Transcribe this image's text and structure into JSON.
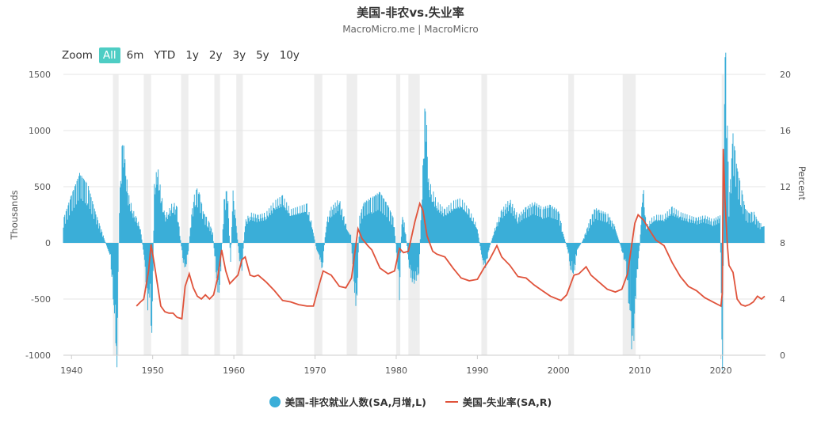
{
  "title": "美国-非农vs.失业率",
  "subtitle": "MacroMicro.me | MacroMicro",
  "zoom": {
    "label": "Zoom",
    "options": [
      "All",
      "6m",
      "YTD",
      "1y",
      "2y",
      "3y",
      "5y",
      "10y"
    ],
    "selected": "All"
  },
  "colors": {
    "payrolls": "#3aaed8",
    "unemployment": "#e0533b",
    "recession": "#eeeeee"
  },
  "chart_data": {
    "type": "bar+line",
    "x_axis": {
      "min": 1939,
      "max": 2025.5,
      "ticks": [
        1940,
        1950,
        1960,
        1970,
        1980,
        1990,
        2000,
        2010,
        2020
      ]
    },
    "y_left": {
      "label": "Thousands",
      "min": -1000,
      "max": 1500,
      "ticks": [
        -1000,
        -500,
        0,
        500,
        1000,
        1500
      ],
      "tick_labels": [
        "-1000",
        "-500",
        "0",
        "500",
        "1000",
        "1500"
      ]
    },
    "y_right": {
      "label": "Percent",
      "min": 0,
      "max": 20,
      "ticks": [
        0,
        4,
        8,
        12,
        16,
        20
      ],
      "tick_labels": [
        "0",
        "4",
        "8",
        "12",
        "16",
        "20"
      ]
    },
    "grid": true,
    "legend_position": "bottom",
    "recessions": [
      [
        1945.1,
        1945.8
      ],
      [
        1948.9,
        1949.8
      ],
      [
        1953.5,
        1954.4
      ],
      [
        1957.6,
        1958.3
      ],
      [
        1960.3,
        1961.1
      ],
      [
        1969.9,
        1970.9
      ],
      [
        1973.9,
        1975.2
      ],
      [
        1980.0,
        1980.5
      ],
      [
        1981.5,
        1982.9
      ],
      [
        1990.5,
        1991.2
      ],
      [
        2001.2,
        2001.9
      ],
      [
        2007.9,
        2009.5
      ],
      [
        2020.1,
        2020.4
      ]
    ],
    "series": [
      {
        "name": "美国-非农就业人数(SA,月增,L)",
        "type": "bar",
        "axis": "left",
        "points": [
          [
            1939.0,
            180
          ],
          [
            1940.0,
            360
          ],
          [
            1941.0,
            520
          ],
          [
            1942.0,
            440
          ],
          [
            1943.0,
            220
          ],
          [
            1944.0,
            40
          ],
          [
            1944.8,
            -120
          ],
          [
            1945.3,
            -560
          ],
          [
            1945.6,
            -900
          ],
          [
            1945.9,
            300
          ],
          [
            1946.3,
            800
          ],
          [
            1946.6,
            600
          ],
          [
            1947.0,
            360
          ],
          [
            1947.5,
            250
          ],
          [
            1948.0,
            180
          ],
          [
            1948.5,
            120
          ],
          [
            1949.0,
            -150
          ],
          [
            1949.4,
            -480
          ],
          [
            1949.7,
            -360
          ],
          [
            1949.9,
            -820
          ],
          [
            1950.2,
            420
          ],
          [
            1950.6,
            560
          ],
          [
            1951.0,
            380
          ],
          [
            1951.5,
            200
          ],
          [
            1952.0,
            240
          ],
          [
            1952.5,
            300
          ],
          [
            1953.0,
            260
          ],
          [
            1953.7,
            -120
          ],
          [
            1954.0,
            -220
          ],
          [
            1954.4,
            -60
          ],
          [
            1954.8,
            220
          ],
          [
            1955.3,
            420
          ],
          [
            1955.8,
            360
          ],
          [
            1956.3,
            220
          ],
          [
            1956.8,
            180
          ],
          [
            1957.4,
            80
          ],
          [
            1957.8,
            -220
          ],
          [
            1958.1,
            -420
          ],
          [
            1958.4,
            -220
          ],
          [
            1958.8,
            320
          ],
          [
            1959.2,
            420
          ],
          [
            1959.6,
            -150
          ],
          [
            1959.9,
            380
          ],
          [
            1960.3,
            150
          ],
          [
            1960.7,
            -150
          ],
          [
            1961.0,
            -200
          ],
          [
            1961.4,
            160
          ],
          [
            1962.0,
            220
          ],
          [
            1963.0,
            200
          ],
          [
            1964.0,
            220
          ],
          [
            1965.0,
            300
          ],
          [
            1966.0,
            340
          ],
          [
            1967.0,
            240
          ],
          [
            1968.0,
            260
          ],
          [
            1969.0,
            280
          ],
          [
            1969.7,
            120
          ],
          [
            1970.2,
            -60
          ],
          [
            1970.6,
            -120
          ],
          [
            1970.9,
            -200
          ],
          [
            1971.4,
            160
          ],
          [
            1972.0,
            260
          ],
          [
            1973.0,
            320
          ],
          [
            1973.9,
            120
          ],
          [
            1974.4,
            60
          ],
          [
            1974.8,
            -300
          ],
          [
            1975.1,
            -560
          ],
          [
            1975.5,
            200
          ],
          [
            1976.0,
            300
          ],
          [
            1977.0,
            340
          ],
          [
            1978.0,
            380
          ],
          [
            1979.0,
            280
          ],
          [
            1979.7,
            180
          ],
          [
            1980.2,
            -200
          ],
          [
            1980.4,
            -420
          ],
          [
            1980.7,
            200
          ],
          [
            1981.0,
            160
          ],
          [
            1981.6,
            -180
          ],
          [
            1981.9,
            -280
          ],
          [
            1982.3,
            -300
          ],
          [
            1982.8,
            -220
          ],
          [
            1983.2,
            420
          ],
          [
            1983.6,
            1100
          ],
          [
            1984.0,
            460
          ],
          [
            1984.5,
            380
          ],
          [
            1985.0,
            300
          ],
          [
            1986.0,
            240
          ],
          [
            1987.0,
            300
          ],
          [
            1988.0,
            320
          ],
          [
            1989.0,
            240
          ],
          [
            1990.0,
            120
          ],
          [
            1990.6,
            -140
          ],
          [
            1991.0,
            -180
          ],
          [
            1991.5,
            -40
          ],
          [
            1992.0,
            80
          ],
          [
            1993.0,
            240
          ],
          [
            1994.0,
            320
          ],
          [
            1995.0,
            200
          ],
          [
            1996.0,
            260
          ],
          [
            1997.0,
            300
          ],
          [
            1998.0,
            260
          ],
          [
            1999.0,
            280
          ],
          [
            2000.0,
            240
          ],
          [
            2000.5,
            100
          ],
          [
            2001.2,
            -80
          ],
          [
            2001.5,
            -200
          ],
          [
            2001.9,
            -240
          ],
          [
            2002.3,
            -60
          ],
          [
            2003.0,
            20
          ],
          [
            2003.8,
            160
          ],
          [
            2004.5,
            260
          ],
          [
            2005.0,
            240
          ],
          [
            2006.0,
            220
          ],
          [
            2007.0,
            120
          ],
          [
            2007.8,
            -60
          ],
          [
            2008.3,
            -180
          ],
          [
            2008.8,
            -560
          ],
          [
            2009.0,
            -760
          ],
          [
            2009.2,
            -800
          ],
          [
            2009.6,
            -300
          ],
          [
            2010.0,
            -20
          ],
          [
            2010.4,
            440
          ],
          [
            2010.8,
            120
          ],
          [
            2011.5,
            180
          ],
          [
            2012.0,
            200
          ],
          [
            2013.0,
            200
          ],
          [
            2014.0,
            260
          ],
          [
            2015.0,
            220
          ],
          [
            2016.0,
            200
          ],
          [
            2017.0,
            180
          ],
          [
            2018.0,
            200
          ],
          [
            2019.0,
            170
          ],
          [
            2019.9,
            200
          ],
          [
            2020.2,
            -1000
          ],
          [
            2020.45,
            1500
          ],
          [
            2020.6,
            1400
          ],
          [
            2020.8,
            900
          ],
          [
            2021.0,
            300
          ],
          [
            2021.5,
            820
          ],
          [
            2022.0,
            560
          ],
          [
            2022.5,
            420
          ],
          [
            2023.0,
            260
          ],
          [
            2023.5,
            220
          ],
          [
            2024.0,
            240
          ],
          [
            2024.5,
            170
          ],
          [
            2025.0,
            140
          ],
          [
            2025.4,
            150
          ]
        ]
      },
      {
        "name": "美国-失业率(SA,R)",
        "type": "line",
        "axis": "right",
        "points": [
          [
            1948.0,
            3.5
          ],
          [
            1948.5,
            3.8
          ],
          [
            1948.9,
            4.0
          ],
          [
            1949.5,
            6.0
          ],
          [
            1949.8,
            7.9
          ],
          [
            1950.2,
            6.5
          ],
          [
            1950.6,
            5.0
          ],
          [
            1951.0,
            3.5
          ],
          [
            1951.5,
            3.1
          ],
          [
            1952.0,
            3.0
          ],
          [
            1952.5,
            3.0
          ],
          [
            1953.0,
            2.7
          ],
          [
            1953.6,
            2.6
          ],
          [
            1954.0,
            4.9
          ],
          [
            1954.5,
            5.8
          ],
          [
            1955.0,
            4.8
          ],
          [
            1955.5,
            4.2
          ],
          [
            1956.0,
            4.0
          ],
          [
            1956.5,
            4.3
          ],
          [
            1957.0,
            4.0
          ],
          [
            1957.5,
            4.3
          ],
          [
            1958.0,
            5.5
          ],
          [
            1958.5,
            7.5
          ],
          [
            1959.0,
            6.0
          ],
          [
            1959.5,
            5.1
          ],
          [
            1960.0,
            5.4
          ],
          [
            1960.5,
            5.7
          ],
          [
            1961.0,
            6.8
          ],
          [
            1961.4,
            7.0
          ],
          [
            1962.0,
            5.7
          ],
          [
            1962.5,
            5.6
          ],
          [
            1963.0,
            5.7
          ],
          [
            1964.0,
            5.2
          ],
          [
            1965.0,
            4.6
          ],
          [
            1966.0,
            3.9
          ],
          [
            1967.0,
            3.8
          ],
          [
            1968.0,
            3.6
          ],
          [
            1969.0,
            3.5
          ],
          [
            1969.8,
            3.5
          ],
          [
            1970.5,
            5.0
          ],
          [
            1971.0,
            6.0
          ],
          [
            1972.0,
            5.7
          ],
          [
            1973.0,
            4.9
          ],
          [
            1973.8,
            4.8
          ],
          [
            1974.5,
            5.5
          ],
          [
            1975.3,
            9.0
          ],
          [
            1975.8,
            8.3
          ],
          [
            1976.5,
            7.8
          ],
          [
            1977.0,
            7.5
          ],
          [
            1978.0,
            6.2
          ],
          [
            1979.0,
            5.8
          ],
          [
            1979.8,
            6.0
          ],
          [
            1980.4,
            7.6
          ],
          [
            1980.9,
            7.3
          ],
          [
            1981.5,
            7.4
          ],
          [
            1982.3,
            9.5
          ],
          [
            1982.9,
            10.8
          ],
          [
            1983.3,
            10.3
          ],
          [
            1983.8,
            8.5
          ],
          [
            1984.5,
            7.4
          ],
          [
            1985.0,
            7.2
          ],
          [
            1986.0,
            7.0
          ],
          [
            1987.0,
            6.2
          ],
          [
            1988.0,
            5.5
          ],
          [
            1989.0,
            5.3
          ],
          [
            1990.0,
            5.4
          ],
          [
            1990.8,
            6.2
          ],
          [
            1991.5,
            6.8
          ],
          [
            1992.4,
            7.8
          ],
          [
            1993.0,
            7.0
          ],
          [
            1994.0,
            6.4
          ],
          [
            1995.0,
            5.6
          ],
          [
            1996.0,
            5.5
          ],
          [
            1997.0,
            5.0
          ],
          [
            1998.0,
            4.6
          ],
          [
            1999.0,
            4.2
          ],
          [
            2000.3,
            3.9
          ],
          [
            2001.0,
            4.3
          ],
          [
            2001.9,
            5.7
          ],
          [
            2002.5,
            5.8
          ],
          [
            2003.4,
            6.3
          ],
          [
            2004.0,
            5.7
          ],
          [
            2005.0,
            5.2
          ],
          [
            2006.0,
            4.7
          ],
          [
            2007.0,
            4.5
          ],
          [
            2007.8,
            4.7
          ],
          [
            2008.5,
            5.8
          ],
          [
            2009.0,
            7.8
          ],
          [
            2009.4,
            9.4
          ],
          [
            2009.8,
            10.0
          ],
          [
            2010.5,
            9.6
          ],
          [
            2011.0,
            9.1
          ],
          [
            2012.0,
            8.2
          ],
          [
            2013.0,
            7.8
          ],
          [
            2014.0,
            6.6
          ],
          [
            2015.0,
            5.6
          ],
          [
            2016.0,
            4.9
          ],
          [
            2017.0,
            4.6
          ],
          [
            2018.0,
            4.1
          ],
          [
            2019.0,
            3.8
          ],
          [
            2020.0,
            3.5
          ],
          [
            2020.17,
            4.4
          ],
          [
            2020.3,
            14.7
          ],
          [
            2020.5,
            11.1
          ],
          [
            2020.8,
            7.8
          ],
          [
            2021.0,
            6.4
          ],
          [
            2021.5,
            5.9
          ],
          [
            2022.0,
            4.0
          ],
          [
            2022.5,
            3.6
          ],
          [
            2023.0,
            3.5
          ],
          [
            2023.5,
            3.6
          ],
          [
            2024.0,
            3.8
          ],
          [
            2024.5,
            4.2
          ],
          [
            2025.0,
            4.0
          ],
          [
            2025.4,
            4.2
          ]
        ]
      }
    ]
  }
}
